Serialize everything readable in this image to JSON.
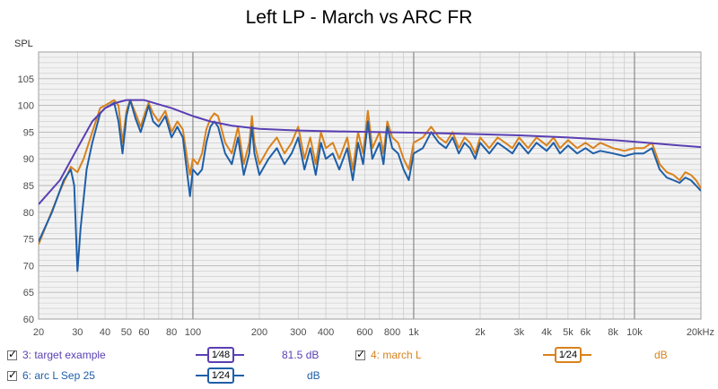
{
  "chart_data": {
    "type": "line",
    "title": "Left LP - March vs ARC FR",
    "ylabel": "SPL",
    "xscale": "log",
    "xlim": [
      20,
      20000
    ],
    "ylim": [
      60,
      110
    ],
    "y_ticks": [
      60,
      65,
      70,
      75,
      80,
      85,
      90,
      95,
      100,
      105
    ],
    "x_ticks": [
      {
        "v": 20,
        "label": "20"
      },
      {
        "v": 30,
        "label": "30"
      },
      {
        "v": 40,
        "label": "40"
      },
      {
        "v": 50,
        "label": "50"
      },
      {
        "v": 60,
        "label": "60"
      },
      {
        "v": 80,
        "label": "80"
      },
      {
        "v": 100,
        "label": "100"
      },
      {
        "v": 200,
        "label": "200"
      },
      {
        "v": 300,
        "label": "300"
      },
      {
        "v": 400,
        "label": "400"
      },
      {
        "v": 600,
        "label": "600"
      },
      {
        "v": 800,
        "label": "800"
      },
      {
        "v": 1000,
        "label": "1k"
      },
      {
        "v": 2000,
        "label": "2k"
      },
      {
        "v": 3000,
        "label": "3k"
      },
      {
        "v": 4000,
        "label": "4k"
      },
      {
        "v": 5000,
        "label": "5k"
      },
      {
        "v": 6000,
        "label": "6k"
      },
      {
        "v": 8000,
        "label": "8k"
      },
      {
        "v": 10000,
        "label": "10k"
      },
      {
        "v": 20000,
        "label": "20kHz"
      }
    ],
    "grid": true,
    "legend_position": "bottom",
    "series": [
      {
        "name": "3: target example",
        "color": "#5a3fb3",
        "smoothing": "1/48",
        "offset": "81.5 dB",
        "points": [
          [
            20,
            81.5
          ],
          [
            25,
            86
          ],
          [
            30,
            92
          ],
          [
            35,
            97
          ],
          [
            40,
            99.5
          ],
          [
            45,
            100.5
          ],
          [
            50,
            101
          ],
          [
            60,
            101
          ],
          [
            70,
            100.2
          ],
          [
            80,
            99.5
          ],
          [
            100,
            98
          ],
          [
            120,
            97
          ],
          [
            150,
            96.2
          ],
          [
            200,
            95.6
          ],
          [
            300,
            95.3
          ],
          [
            500,
            95.1
          ],
          [
            1000,
            94.9
          ],
          [
            2000,
            94.6
          ],
          [
            3000,
            94.4
          ],
          [
            5000,
            94
          ],
          [
            8000,
            93.5
          ],
          [
            10000,
            93.2
          ],
          [
            15000,
            92.6
          ],
          [
            20000,
            92.2
          ]
        ]
      },
      {
        "name": "4: march L",
        "color": "#d9821c",
        "smoothing": "1/24",
        "offset": "dB",
        "points": [
          [
            20,
            74
          ],
          [
            25,
            84
          ],
          [
            28,
            88.5
          ],
          [
            30,
            87.5
          ],
          [
            32,
            90
          ],
          [
            35,
            95
          ],
          [
            38,
            99.5
          ],
          [
            40,
            100
          ],
          [
            42,
            100.5
          ],
          [
            44,
            101
          ],
          [
            46,
            100
          ],
          [
            48,
            93
          ],
          [
            50,
            99
          ],
          [
            52,
            101
          ],
          [
            55,
            98.5
          ],
          [
            58,
            96
          ],
          [
            60,
            98
          ],
          [
            63,
            100.5
          ],
          [
            66,
            98.5
          ],
          [
            70,
            97
          ],
          [
            75,
            99
          ],
          [
            80,
            95
          ],
          [
            85,
            97
          ],
          [
            90,
            95.5
          ],
          [
            95,
            89
          ],
          [
            97,
            87
          ],
          [
            100,
            90
          ],
          [
            105,
            89
          ],
          [
            110,
            91
          ],
          [
            115,
            95.5
          ],
          [
            120,
            97.5
          ],
          [
            125,
            98.5
          ],
          [
            130,
            98
          ],
          [
            140,
            93
          ],
          [
            150,
            91
          ],
          [
            160,
            96
          ],
          [
            170,
            89
          ],
          [
            180,
            93
          ],
          [
            185,
            98
          ],
          [
            190,
            93
          ],
          [
            200,
            89
          ],
          [
            220,
            92
          ],
          [
            240,
            94
          ],
          [
            260,
            91
          ],
          [
            280,
            93
          ],
          [
            300,
            96
          ],
          [
            320,
            90
          ],
          [
            340,
            94
          ],
          [
            360,
            89
          ],
          [
            380,
            95
          ],
          [
            400,
            92
          ],
          [
            430,
            93
          ],
          [
            460,
            90
          ],
          [
            500,
            94
          ],
          [
            530,
            88
          ],
          [
            560,
            95
          ],
          [
            590,
            91
          ],
          [
            620,
            99
          ],
          [
            650,
            92
          ],
          [
            700,
            95
          ],
          [
            730,
            91
          ],
          [
            760,
            97
          ],
          [
            800,
            94
          ],
          [
            850,
            93
          ],
          [
            900,
            90
          ],
          [
            950,
            88
          ],
          [
            1000,
            93
          ],
          [
            1100,
            94
          ],
          [
            1200,
            96
          ],
          [
            1300,
            94
          ],
          [
            1400,
            93
          ],
          [
            1500,
            95
          ],
          [
            1600,
            92
          ],
          [
            1700,
            94
          ],
          [
            1800,
            93
          ],
          [
            1900,
            91
          ],
          [
            2000,
            94
          ],
          [
            2200,
            92
          ],
          [
            2400,
            94
          ],
          [
            2600,
            93
          ],
          [
            2800,
            92
          ],
          [
            3000,
            94
          ],
          [
            3300,
            92
          ],
          [
            3600,
            94
          ],
          [
            4000,
            92.5
          ],
          [
            4300,
            94
          ],
          [
            4600,
            92
          ],
          [
            5000,
            93.5
          ],
          [
            5500,
            92
          ],
          [
            6000,
            93
          ],
          [
            6500,
            92
          ],
          [
            7000,
            93
          ],
          [
            8000,
            92
          ],
          [
            9000,
            91.5
          ],
          [
            10000,
            92
          ],
          [
            11000,
            92
          ],
          [
            12000,
            93
          ],
          [
            13000,
            89
          ],
          [
            14000,
            87.5
          ],
          [
            15000,
            87
          ],
          [
            16000,
            86
          ],
          [
            17000,
            87.5
          ],
          [
            18000,
            87
          ],
          [
            19000,
            86
          ],
          [
            20000,
            84.5
          ]
        ]
      },
      {
        "name": "6: arc L Sep 25",
        "color": "#1f5fa8",
        "smoothing": "1/24",
        "offset": "dB",
        "points": [
          [
            20,
            74.5
          ],
          [
            23,
            80
          ],
          [
            26,
            86
          ],
          [
            28,
            88
          ],
          [
            29,
            85
          ],
          [
            30,
            69
          ],
          [
            31,
            77
          ],
          [
            33,
            88
          ],
          [
            35,
            93
          ],
          [
            38,
            98.5
          ],
          [
            40,
            99.5
          ],
          [
            42,
            100
          ],
          [
            44,
            100.5
          ],
          [
            46,
            97
          ],
          [
            48,
            91
          ],
          [
            50,
            98
          ],
          [
            52,
            101
          ],
          [
            55,
            97.5
          ],
          [
            58,
            95
          ],
          [
            60,
            97
          ],
          [
            63,
            100
          ],
          [
            66,
            97
          ],
          [
            70,
            96
          ],
          [
            75,
            98
          ],
          [
            80,
            94
          ],
          [
            85,
            96
          ],
          [
            90,
            94
          ],
          [
            95,
            86
          ],
          [
            97,
            83
          ],
          [
            100,
            88
          ],
          [
            105,
            87
          ],
          [
            110,
            88
          ],
          [
            115,
            93
          ],
          [
            120,
            96
          ],
          [
            125,
            97
          ],
          [
            130,
            96
          ],
          [
            140,
            91
          ],
          [
            150,
            89
          ],
          [
            160,
            94
          ],
          [
            170,
            87
          ],
          [
            180,
            91
          ],
          [
            185,
            96
          ],
          [
            190,
            91
          ],
          [
            200,
            87
          ],
          [
            220,
            90
          ],
          [
            240,
            92
          ],
          [
            260,
            89
          ],
          [
            280,
            91
          ],
          [
            300,
            94
          ],
          [
            320,
            88
          ],
          [
            340,
            92
          ],
          [
            360,
            87
          ],
          [
            380,
            93
          ],
          [
            400,
            90
          ],
          [
            430,
            91
          ],
          [
            460,
            88
          ],
          [
            500,
            92
          ],
          [
            530,
            86
          ],
          [
            560,
            93
          ],
          [
            590,
            89
          ],
          [
            620,
            97
          ],
          [
            650,
            90
          ],
          [
            700,
            93
          ],
          [
            730,
            89
          ],
          [
            760,
            96
          ],
          [
            800,
            92
          ],
          [
            850,
            91
          ],
          [
            900,
            88
          ],
          [
            950,
            86
          ],
          [
            1000,
            91
          ],
          [
            1100,
            92
          ],
          [
            1200,
            95
          ],
          [
            1300,
            93
          ],
          [
            1400,
            92
          ],
          [
            1500,
            94
          ],
          [
            1600,
            91
          ],
          [
            1700,
            93
          ],
          [
            1800,
            92
          ],
          [
            1900,
            90
          ],
          [
            2000,
            93
          ],
          [
            2200,
            91
          ],
          [
            2400,
            93
          ],
          [
            2600,
            92
          ],
          [
            2800,
            91
          ],
          [
            3000,
            93
          ],
          [
            3300,
            91
          ],
          [
            3600,
            93
          ],
          [
            4000,
            91.5
          ],
          [
            4300,
            93
          ],
          [
            4600,
            91
          ],
          [
            5000,
            92.5
          ],
          [
            5500,
            91
          ],
          [
            6000,
            92
          ],
          [
            6500,
            91
          ],
          [
            7000,
            91.5
          ],
          [
            8000,
            91
          ],
          [
            9000,
            90.5
          ],
          [
            10000,
            91
          ],
          [
            11000,
            91
          ],
          [
            12000,
            92
          ],
          [
            13000,
            88
          ],
          [
            14000,
            86.5
          ],
          [
            15000,
            86
          ],
          [
            16000,
            85.5
          ],
          [
            17000,
            86.5
          ],
          [
            18000,
            86
          ],
          [
            19000,
            85
          ],
          [
            20000,
            84
          ]
        ]
      }
    ]
  },
  "legend": {
    "items": [
      {
        "label": "3: target example",
        "smoothing_label": "1⁄48",
        "offset_label": "81.5 dB",
        "color": "#5a3fb3"
      },
      {
        "label": "4: march L",
        "smoothing_label": "1⁄24",
        "offset_label": "dB",
        "color": "#d9821c"
      },
      {
        "label": "6: arc L Sep 25",
        "smoothing_label": "1⁄24",
        "offset_label": "dB",
        "color": "#1f5fa8"
      }
    ]
  },
  "colors": {
    "plot_background": "#f2f2f2",
    "minor_grid": "#c8c8c8",
    "major_grid": "#808080",
    "tick_label": "#4d4d4d"
  }
}
